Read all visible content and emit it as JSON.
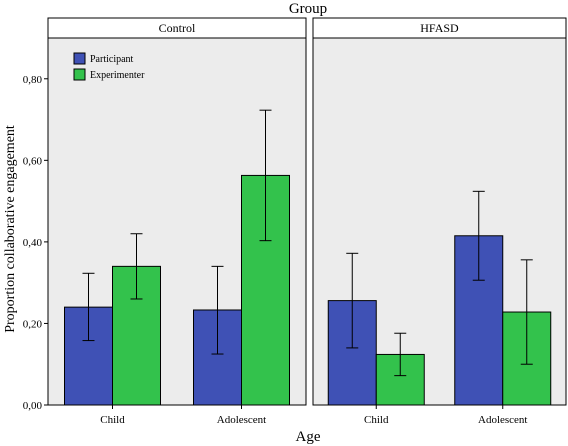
{
  "chart_data": {
    "type": "bar",
    "title": "Group",
    "xlabel": "Age",
    "ylabel": "Proportion collaborative engagement",
    "ylim": [
      0,
      0.9
    ],
    "yticks": [
      "0,00",
      "0,20",
      "0,40",
      "0,60",
      "0,80"
    ],
    "ytick_values": [
      0,
      0.2,
      0.4,
      0.6,
      0.8
    ],
    "categories": [
      "Child",
      "Adolescent"
    ],
    "legend": {
      "placement": "top-left",
      "entries": [
        "Participant",
        "Experimenter"
      ]
    },
    "colors": {
      "Participant": "#3f51b5",
      "Experimenter": "#33c24c",
      "panel_bg": "#ececec"
    },
    "panels": [
      {
        "name": "Control",
        "series": [
          {
            "name": "Participant",
            "values": [
              0.24,
              0.233
            ],
            "err_low": [
              0.158,
              0.125
            ],
            "err_high": [
              0.323,
              0.34
            ]
          },
          {
            "name": "Experimenter",
            "values": [
              0.34,
              0.563
            ],
            "err_low": [
              0.26,
              0.403
            ],
            "err_high": [
              0.42,
              0.723
            ]
          }
        ]
      },
      {
        "name": "HFASD",
        "series": [
          {
            "name": "Participant",
            "values": [
              0.256,
              0.415
            ],
            "err_low": [
              0.14,
              0.306
            ],
            "err_high": [
              0.372,
              0.524
            ]
          },
          {
            "name": "Experimenter",
            "values": [
              0.124,
              0.228
            ],
            "err_low": [
              0.072,
              0.1
            ],
            "err_high": [
              0.176,
              0.356
            ]
          }
        ]
      }
    ]
  }
}
